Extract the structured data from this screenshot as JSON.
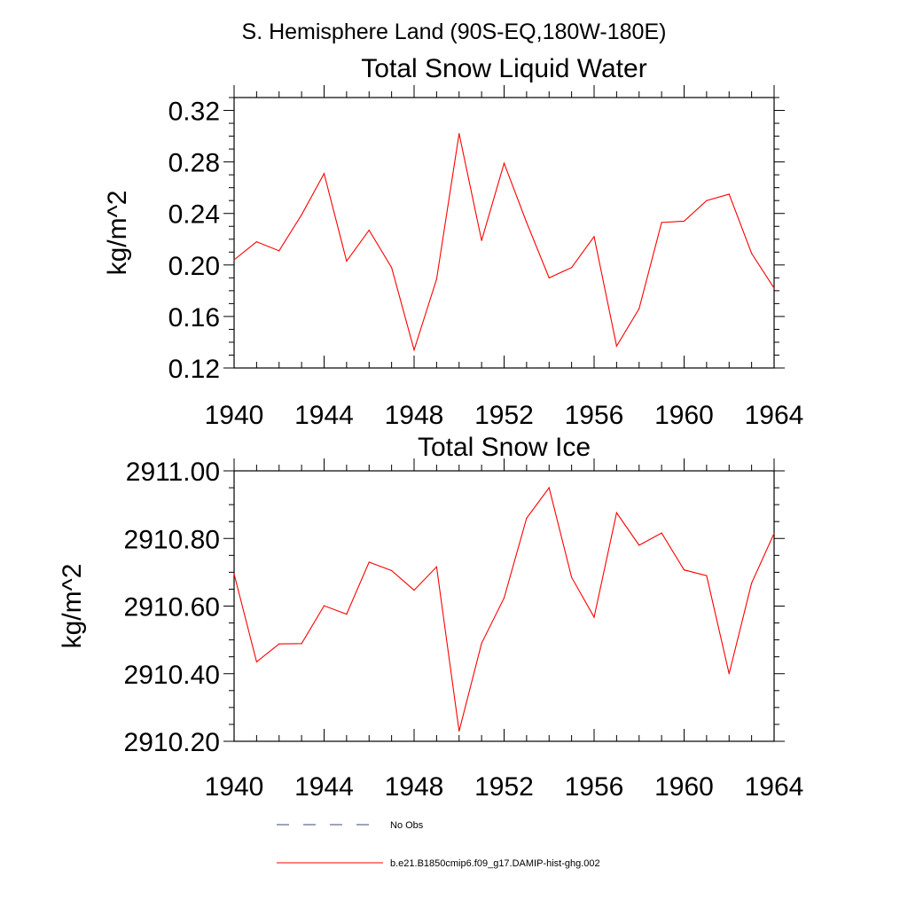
{
  "figure_title": "S. Hemisphere Land (90S-EQ,180W-180E)",
  "series_color": "#ff0000",
  "obs_color": "#3b4a7a",
  "legend": {
    "obs_label": "No Obs",
    "model_label": "b.e21.B1850cmip6.f09_g17.DAMIP-hist-ghg.002"
  },
  "chart_data": [
    {
      "type": "line",
      "title": "Total Snow Liquid Water",
      "ylabel": "kg/m^2",
      "xlabel": "",
      "xlim": [
        1940,
        1964
      ],
      "ylim": [
        0.12,
        0.33
      ],
      "x_ticks": [
        1940,
        1944,
        1948,
        1952,
        1956,
        1960,
        1964
      ],
      "y_ticks": [
        0.12,
        0.16,
        0.2,
        0.24,
        0.28,
        0.32
      ],
      "y_tick_labels": [
        "0.12",
        "0.16",
        "0.20",
        "0.24",
        "0.28",
        "0.32"
      ],
      "series": [
        {
          "x": [
            1940,
            1941,
            1942,
            1943,
            1944,
            1945,
            1946,
            1947,
            1948,
            1949,
            1950,
            1951,
            1952,
            1953,
            1954,
            1955,
            1956,
            1957,
            1958,
            1959,
            1960,
            1961,
            1962,
            1963,
            1964
          ],
          "values": [
            0.204,
            0.218,
            0.211,
            0.239,
            0.271,
            0.203,
            0.227,
            0.198,
            0.134,
            0.189,
            0.302,
            0.219,
            0.279,
            0.233,
            0.19,
            0.198,
            0.222,
            0.137,
            0.166,
            0.233,
            0.234,
            0.25,
            0.255,
            0.209,
            0.182
          ]
        }
      ]
    },
    {
      "type": "line",
      "title": "Total Snow Ice",
      "ylabel": "kg/m^2",
      "xlabel": "",
      "xlim": [
        1940,
        1964
      ],
      "ylim": [
        2910.2,
        2911.0
      ],
      "x_ticks": [
        1940,
        1944,
        1948,
        1952,
        1956,
        1960,
        1964
      ],
      "y_ticks": [
        2910.2,
        2910.4,
        2910.6,
        2910.8,
        2911.0
      ],
      "y_tick_labels": [
        "2910.20",
        "2910.40",
        "2910.60",
        "2910.80",
        "2911.00"
      ],
      "series": [
        {
          "x": [
            1940,
            1941,
            1942,
            1943,
            1944,
            1945,
            1946,
            1947,
            1948,
            1949,
            1950,
            1951,
            1952,
            1953,
            1954,
            1955,
            1956,
            1957,
            1958,
            1959,
            1960,
            1961,
            1962,
            1963,
            1964
          ],
          "values": [
            2910.695,
            2910.435,
            2910.488,
            2910.489,
            2910.601,
            2910.576,
            2910.73,
            2910.705,
            2910.647,
            2910.716,
            2910.23,
            2910.49,
            2910.624,
            2910.86,
            2910.95,
            2910.685,
            2910.567,
            2910.876,
            2910.78,
            2910.816,
            2910.707,
            2910.69,
            2910.4,
            2910.668,
            2910.815
          ]
        }
      ]
    }
  ]
}
